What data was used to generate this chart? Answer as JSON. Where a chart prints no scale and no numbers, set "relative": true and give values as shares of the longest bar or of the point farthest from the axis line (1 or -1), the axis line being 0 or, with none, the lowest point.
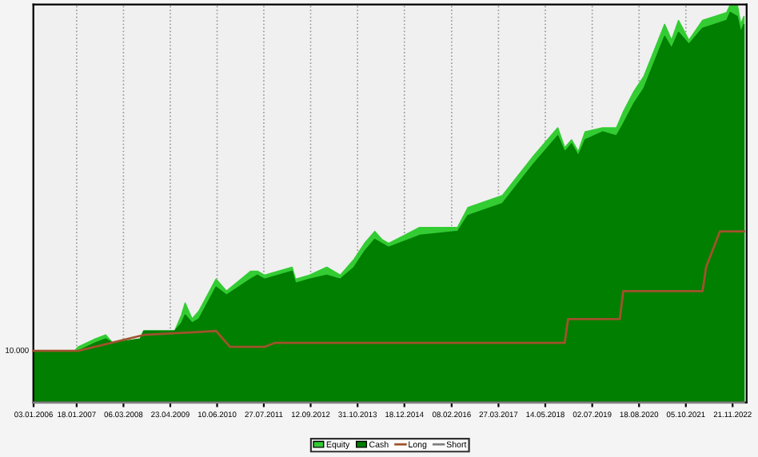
{
  "chart_data": {
    "type": "area",
    "relative": true,
    "grid": "x",
    "legend": "bottom",
    "xlim": [
      "2006-01-01",
      "2023-03-25"
    ],
    "xticks": [
      {
        "value": "2006-01-03",
        "label": "03.01.2006"
      },
      {
        "value": "2007-01-18",
        "label": "18.01.2007"
      },
      {
        "value": "2008-03-06",
        "label": "06.03.2008"
      },
      {
        "value": "2009-04-23",
        "label": "23.04.2009"
      },
      {
        "value": "2010-06-10",
        "label": "10.06.2010"
      },
      {
        "value": "2011-07-27",
        "label": "27.07.2011"
      },
      {
        "value": "2012-09-12",
        "label": "12.09.2012"
      },
      {
        "value": "2013-10-31",
        "label": "31.10.2013"
      },
      {
        "value": "2014-12-18",
        "label": "18.12.2014"
      },
      {
        "value": "2016-02-08",
        "label": "08.02.2016"
      },
      {
        "value": "2017-03-27",
        "label": "27.03.2017"
      },
      {
        "value": "2018-05-14",
        "label": "14.05.2018"
      },
      {
        "value": "2019-07-02",
        "label": "02.07.2019"
      },
      {
        "value": "2020-08-18",
        "label": "18.08.2020"
      },
      {
        "value": "2021-10-05",
        "label": "05.10.2021"
      },
      {
        "value": "2022-11-21",
        "label": "21.11.2022"
      }
    ],
    "annotations": [
      {
        "text": "10.000",
        "x": "2006-01",
        "y": 0.13
      }
    ],
    "series": [
      {
        "name": "Equity",
        "color": "#33cc33",
        "x": [
          "2006-01",
          "2007-01",
          "2007-02",
          "2007-07",
          "2007-10",
          "2007-12",
          "2008-08",
          "2008-09",
          "2009-06",
          "2009-08",
          "2009-09",
          "2009-11",
          "2010-01",
          "2010-06",
          "2010-09",
          "2011-04",
          "2011-06",
          "2011-08",
          "2012-04",
          "2012-05",
          "2012-09",
          "2013-02",
          "2013-06",
          "2013-10",
          "2014-01",
          "2014-04",
          "2014-06",
          "2014-08",
          "2015-05",
          "2016-04",
          "2016-07",
          "2017-05",
          "2018-02",
          "2018-09",
          "2018-11",
          "2019-01",
          "2019-03",
          "2019-05",
          "2019-10",
          "2020-02",
          "2020-04",
          "2020-07",
          "2020-10",
          "2021-04",
          "2021-06",
          "2021-08",
          "2021-11",
          "2022-03",
          "2022-10",
          "2022-11",
          "2023-01",
          "2023-02",
          "2023-03"
        ],
        "values": [
          0.13,
          0.13,
          0.14,
          0.16,
          0.17,
          0.15,
          0.16,
          0.18,
          0.18,
          0.22,
          0.25,
          0.21,
          0.23,
          0.31,
          0.28,
          0.33,
          0.33,
          0.32,
          0.34,
          0.31,
          0.32,
          0.34,
          0.32,
          0.36,
          0.4,
          0.43,
          0.41,
          0.4,
          0.44,
          0.44,
          0.49,
          0.52,
          0.62,
          0.69,
          0.64,
          0.66,
          0.63,
          0.68,
          0.69,
          0.69,
          0.73,
          0.78,
          0.82,
          0.95,
          0.91,
          0.96,
          0.91,
          0.96,
          0.98,
          1,
          1,
          0.95,
          0.97
        ]
      },
      {
        "name": "Cash",
        "color": "#007f00",
        "x": [
          "2006-01",
          "2007-01",
          "2007-02",
          "2007-07",
          "2007-10",
          "2007-12",
          "2008-08",
          "2008-09",
          "2009-06",
          "2009-08",
          "2009-09",
          "2009-11",
          "2010-01",
          "2010-06",
          "2010-09",
          "2011-04",
          "2011-06",
          "2011-08",
          "2012-04",
          "2012-05",
          "2012-09",
          "2013-02",
          "2013-06",
          "2013-10",
          "2014-01",
          "2014-04",
          "2014-06",
          "2014-08",
          "2015-05",
          "2016-04",
          "2016-07",
          "2017-05",
          "2018-02",
          "2018-09",
          "2018-11",
          "2019-01",
          "2019-03",
          "2019-05",
          "2019-10",
          "2020-02",
          "2020-04",
          "2020-07",
          "2020-10",
          "2021-04",
          "2021-06",
          "2021-08",
          "2021-11",
          "2022-03",
          "2022-10",
          "2022-11",
          "2023-01",
          "2023-02",
          "2023-03"
        ],
        "values": [
          0.13,
          0.13,
          0.13,
          0.15,
          0.16,
          0.15,
          0.16,
          0.18,
          0.18,
          0.2,
          0.22,
          0.2,
          0.21,
          0.29,
          0.27,
          0.31,
          0.32,
          0.31,
          0.33,
          0.3,
          0.31,
          0.32,
          0.31,
          0.34,
          0.38,
          0.41,
          0.4,
          0.39,
          0.42,
          0.43,
          0.47,
          0.5,
          0.6,
          0.67,
          0.63,
          0.65,
          0.62,
          0.66,
          0.68,
          0.67,
          0.7,
          0.75,
          0.79,
          0.92,
          0.89,
          0.93,
          0.9,
          0.94,
          0.96,
          0.98,
          0.97,
          0.93,
          0.95
        ]
      },
      {
        "name": "Long",
        "type": "line",
        "color": "#a0522d",
        "x": [
          "2006-01",
          "2007-02",
          "2008-09",
          "2010-06",
          "2010-10",
          "2011-08",
          "2011-11",
          "2018-11",
          "2018-12",
          "2020-03",
          "2020-04",
          "2022-03",
          "2022-04",
          "2022-08",
          "2023-03"
        ],
        "values": [
          0.13,
          0.13,
          0.17,
          0.18,
          0.14,
          0.14,
          0.15,
          0.15,
          0.21,
          0.21,
          0.28,
          0.28,
          0.34,
          0.43,
          0.43
        ]
      },
      {
        "name": "Short",
        "type": "line",
        "color": "#808080",
        "x": [
          "2006-01",
          "2023-03"
        ],
        "values": [
          0,
          0
        ]
      }
    ]
  }
}
